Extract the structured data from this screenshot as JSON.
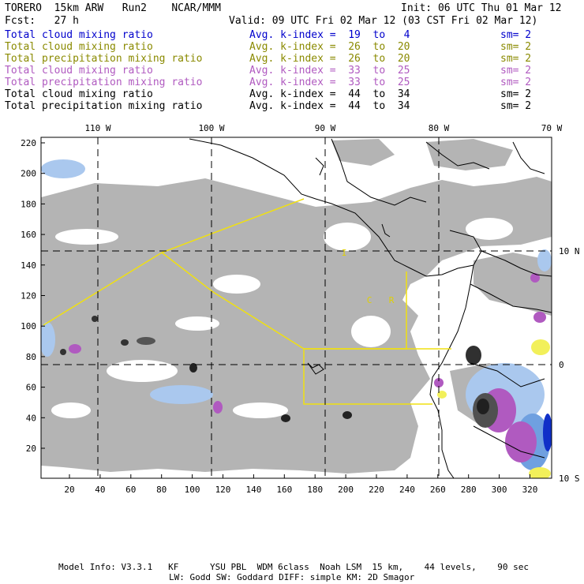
{
  "header": {
    "model": "TORERO  15km ARW   Run2    NCAR/MMM",
    "init": "Init: 06 UTC Thu 01 Mar 12",
    "fcst": "Fcst:   27 h",
    "valid": "Valid: 09 UTC Fri 02 Mar 12 (03 CST Fri 02 Mar 12)"
  },
  "legend": [
    {
      "name": "Total cloud mixing ratio",
      "range": "Avg. k-index =  19  to   4",
      "sm": "sm= 2",
      "color": "#0000cc"
    },
    {
      "name": "Total cloud mixing ratio",
      "range": "Avg. k-index =  26  to  20",
      "sm": "sm= 2",
      "color": "#8a8a00"
    },
    {
      "name": "Total precipitation mixing ratio",
      "range": "Avg. k-index =  26  to  20",
      "sm": "sm= 2",
      "color": "#8a8a00"
    },
    {
      "name": "Total cloud mixing ratio",
      "range": "Avg. k-index =  33  to  25",
      "sm": "sm= 2",
      "color": "#b05ac0"
    },
    {
      "name": "Total precipitation mixing ratio",
      "range": "Avg. k-index =  33  to  25",
      "sm": "sm= 2",
      "color": "#b05ac0"
    },
    {
      "name": "Total cloud mixing ratio",
      "range": "Avg. k-index =  44  to  34",
      "sm": "sm= 2",
      "color": "#000000"
    },
    {
      "name": "Total precipitation mixing ratio",
      "range": "Avg. k-index =  44  to  34",
      "sm": "sm= 2",
      "color": "#000000"
    }
  ],
  "map": {
    "lon_labels": [
      "110 W",
      "100 W",
      "90 W",
      "80 W",
      "70 W"
    ],
    "lat_labels": [
      "10 N",
      "0",
      "10 S"
    ],
    "x_ticks": [
      "20",
      "40",
      "60",
      "80",
      "100",
      "120",
      "140",
      "160",
      "180",
      "200",
      "220",
      "240",
      "260",
      "280",
      "300",
      "320"
    ],
    "y_ticks": [
      "220",
      "200",
      "180",
      "160",
      "140",
      "120",
      "100",
      "80",
      "60",
      "40",
      "20"
    ],
    "region_labels": [
      "I",
      "C",
      "R"
    ]
  },
  "footer": {
    "line1": "Model Info: V3.3.1   KF      YSU PBL  WDM 6class  Noah LSM  15 km,    44 levels,    90 sec",
    "line2": "LW: Godd SW: Goddard DIFF: simple KM: 2D Smagor"
  }
}
